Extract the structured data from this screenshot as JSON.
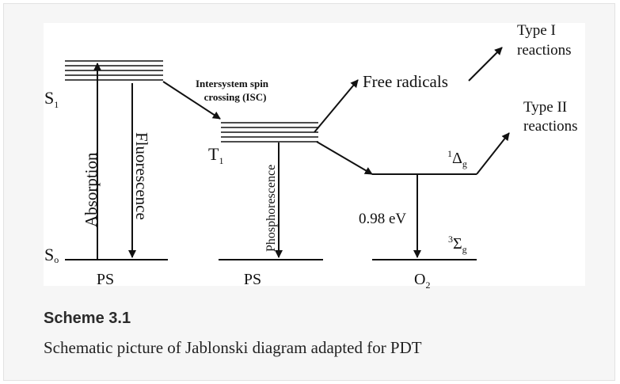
{
  "figure": {
    "states": {
      "s1": "S",
      "s1_sub": "1",
      "s0": "S",
      "s0_sub": "o",
      "t1": "T",
      "t1_sub": "1",
      "singlet_delta_sup": "1",
      "singlet_delta": "Δ",
      "singlet_delta_sub": "g",
      "triplet_sigma_sup": "3",
      "triplet_sigma": "Σ",
      "triplet_sigma_sub": "g"
    },
    "transitions": {
      "absorption": "Absorption",
      "fluorescence": "Fluorescence",
      "phosphorescence": "Phosphorescence",
      "isc_line1": "Intersystem spin",
      "isc_line2": "crossing (ISC)"
    },
    "products": {
      "free_radicals": "Free radicals",
      "type1_line1": "Type I",
      "type1_line2": "reactions",
      "type2_line1": "Type II",
      "type2_line2": "reactions"
    },
    "energy_gap": "0.98 eV",
    "species": {
      "ps_left": "PS",
      "ps_middle": "PS",
      "o2": "O",
      "o2_sub": "2"
    }
  },
  "caption": {
    "title": "Scheme 3.1",
    "text": "Schematic picture of Jablonski diagram adapted for PDT"
  }
}
